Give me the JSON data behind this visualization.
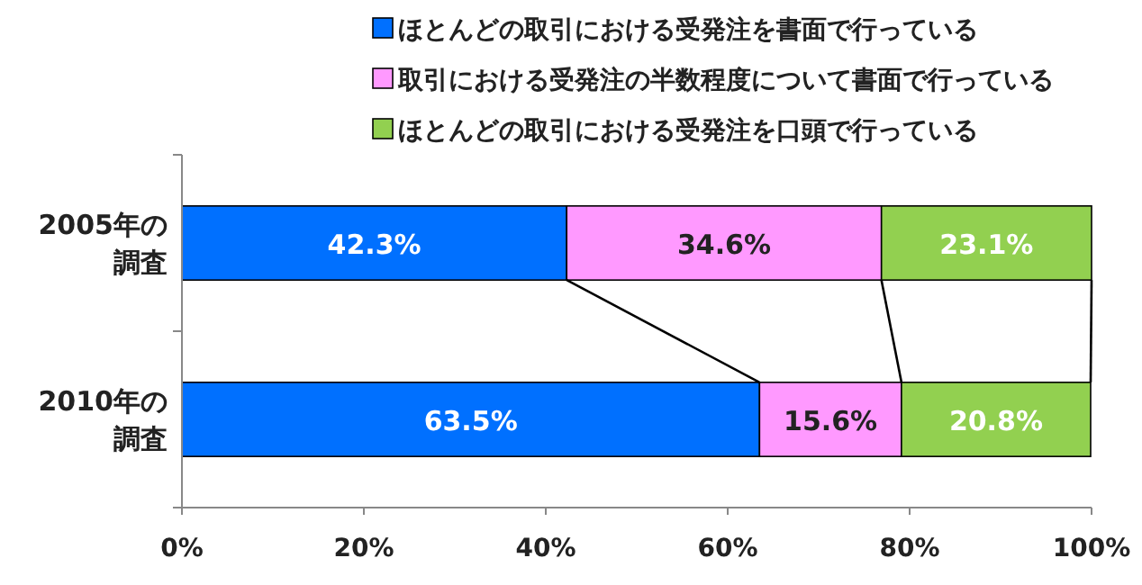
{
  "chart_data": {
    "type": "bar",
    "orientation": "horizontal",
    "stacked": true,
    "categories": [
      "2005年の調査",
      "2010年の調査"
    ],
    "series": [
      {
        "name": "ほとんどの取引における受発注を書面で行っている",
        "color": "#0070ff",
        "values": [
          42.3,
          63.5
        ],
        "value_labels": [
          "42.3%",
          "63.5%"
        ]
      },
      {
        "name": "取引における受発注の半数程度について書面で行っている",
        "color": "#ff99ff",
        "values": [
          34.6,
          15.6
        ],
        "value_labels": [
          "34.6%",
          "15.6%"
        ]
      },
      {
        "name": "ほとんどの取引における受発注を口頭で行っている",
        "color": "#92d050",
        "values": [
          23.1,
          20.8
        ],
        "value_labels": [
          "23.1%",
          "20.8%"
        ]
      }
    ],
    "xlim": [
      0,
      100
    ],
    "xticks": [
      {
        "value": 0,
        "label": "0%"
      },
      {
        "value": 20,
        "label": "20%"
      },
      {
        "value": 40,
        "label": "40%"
      },
      {
        "value": 60,
        "label": "60%"
      },
      {
        "value": 80,
        "label": "80%"
      },
      {
        "value": 100,
        "label": "100%"
      }
    ],
    "legend": "top",
    "grid": false
  }
}
